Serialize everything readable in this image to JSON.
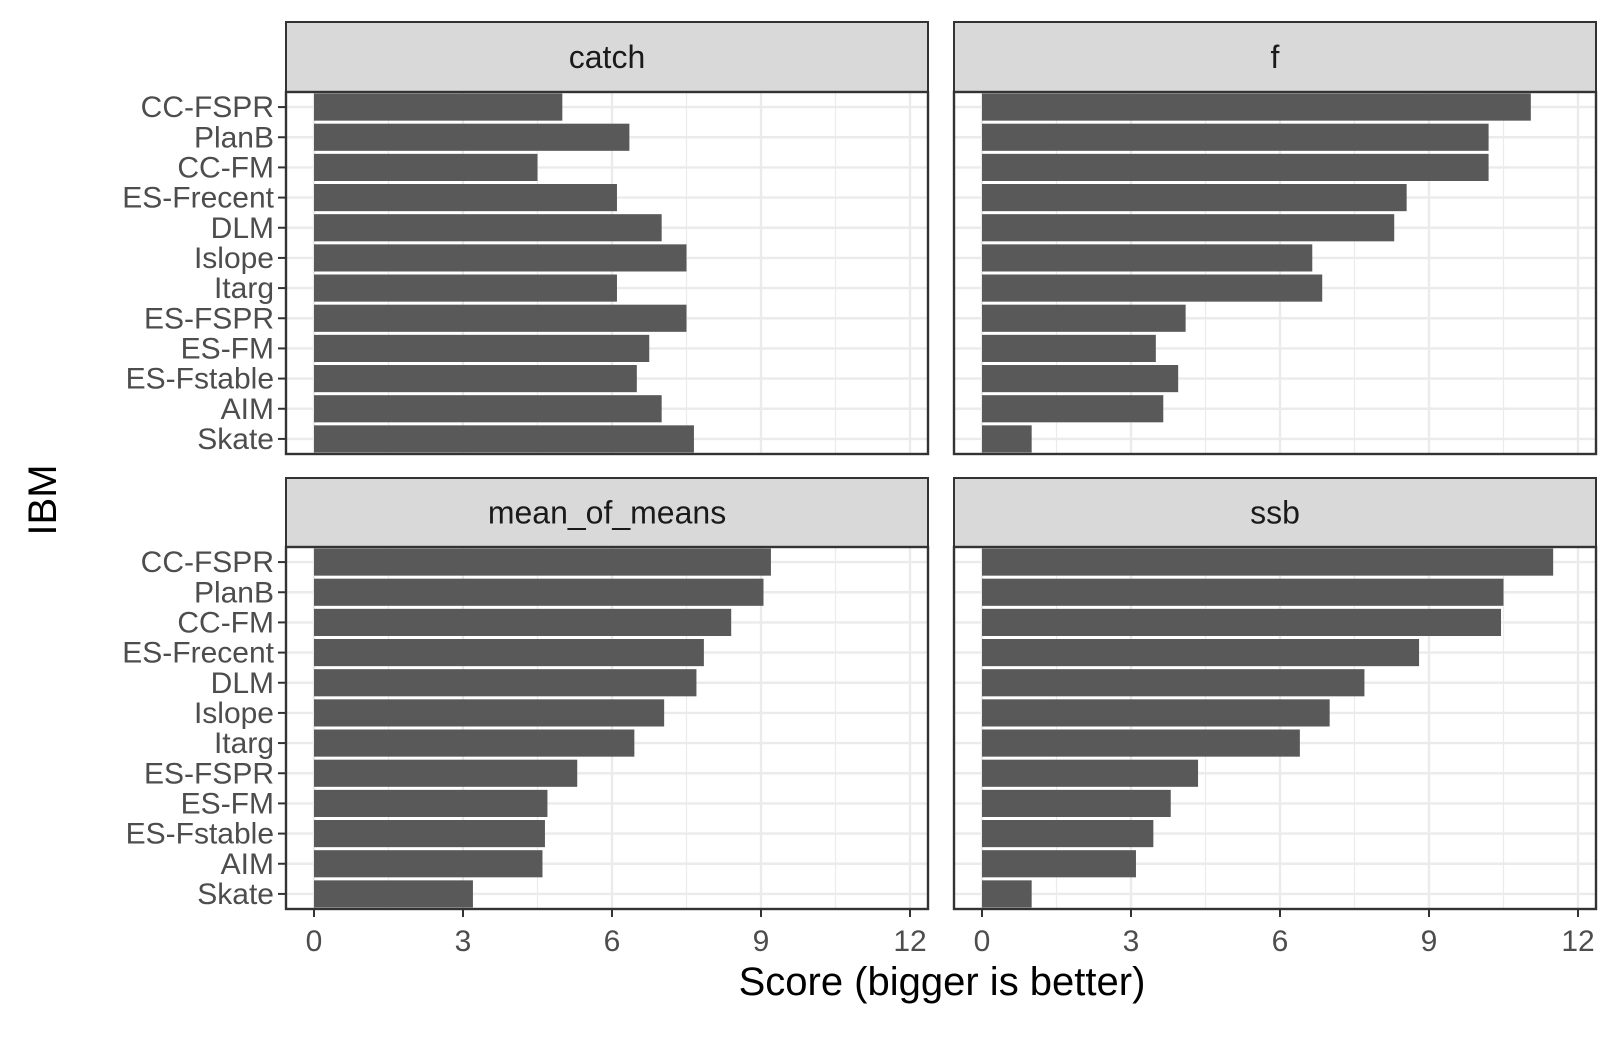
{
  "chart_data": {
    "type": "bar",
    "orientation": "horizontal",
    "faceted": true,
    "facet_grid": "2x2",
    "xlabel": "Score (bigger is better)",
    "ylabel": "IBM",
    "xlim": [
      0,
      12
    ],
    "xticks": [
      0,
      3,
      6,
      9,
      12
    ],
    "grid": true,
    "bar_color": "#595959",
    "categories": [
      "CC-FSPR",
      "PlanB",
      "CC-FM",
      "ES-Frecent",
      "DLM",
      "Islope",
      "Itarg",
      "ES-FSPR",
      "ES-FM",
      "ES-Fstable",
      "AIM",
      "Skate"
    ],
    "panels": [
      {
        "title": "catch",
        "values": [
          5.0,
          6.35,
          4.5,
          6.1,
          7.0,
          7.5,
          6.1,
          7.5,
          6.75,
          6.5,
          7.0,
          7.65
        ]
      },
      {
        "title": "f",
        "values": [
          11.05,
          10.2,
          10.2,
          8.55,
          8.3,
          6.65,
          6.85,
          4.1,
          3.5,
          3.95,
          3.65,
          1.0
        ]
      },
      {
        "title": "mean_of_means",
        "values": [
          9.2,
          9.05,
          8.4,
          7.85,
          7.7,
          7.05,
          6.45,
          5.3,
          4.7,
          4.65,
          4.6,
          3.2
        ]
      },
      {
        "title": "ssb",
        "values": [
          11.5,
          10.5,
          10.45,
          8.8,
          7.7,
          7.0,
          6.4,
          4.35,
          3.8,
          3.45,
          3.1,
          1.0
        ]
      }
    ]
  },
  "colors": {
    "panel_background": "#ffffff",
    "panel_border": "#333333",
    "strip_background": "#d9d9d9",
    "grid": "#ebebeb",
    "tick_text": "#4d4d4d"
  }
}
